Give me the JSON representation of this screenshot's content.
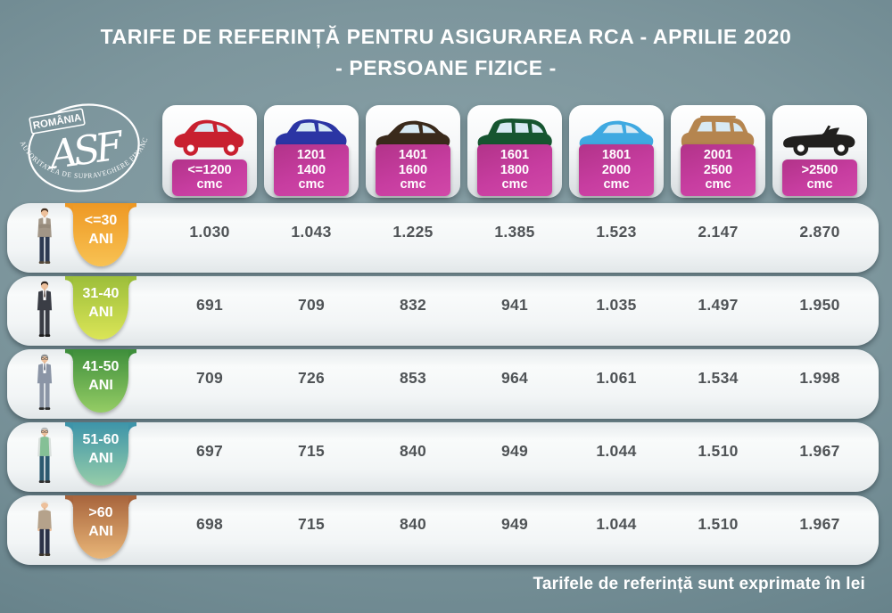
{
  "title": {
    "line1": "TARIFE DE REFERINȚĂ PENTRU ASIGURAREA RCA - APRILIE 2020",
    "line2": "- PERSOANE FIZICE -"
  },
  "logo": {
    "country": "ROMÂNIA",
    "monogram": "ASF",
    "org_name": "AUTORITATEA DE SUPRAVEGHERE FINANCIARĂ"
  },
  "columns": [
    {
      "icon": "red-city-car-icon",
      "body_style": "city",
      "color": "#c8202f",
      "capacity_lines": [
        "<=1200",
        "cmc"
      ]
    },
    {
      "icon": "blue-hatchback-car-icon",
      "body_style": "hatch",
      "color": "#2b35a4",
      "capacity_lines": [
        "1201",
        "1400",
        "cmc"
      ]
    },
    {
      "icon": "brown-sedan-car-icon",
      "body_style": "sedan",
      "color": "#3a2a1b",
      "capacity_lines": [
        "1401",
        "1600",
        "cmc"
      ]
    },
    {
      "icon": "green-wagon-car-icon",
      "body_style": "wagon",
      "color": "#165530",
      "capacity_lines": [
        "1601",
        "1800",
        "cmc"
      ]
    },
    {
      "icon": "lightblue-sedan-car-icon",
      "body_style": "sedan",
      "color": "#3fa9e1",
      "capacity_lines": [
        "1801",
        "2000",
        "cmc"
      ]
    },
    {
      "icon": "tan-suv-car-icon",
      "body_style": "suv",
      "color": "#b5854f",
      "capacity_lines": [
        "2001",
        "2500",
        "cmc"
      ]
    },
    {
      "icon": "black-convertible-car-icon",
      "body_style": "convertible",
      "color": "#21201e",
      "capacity_lines": [
        ">2500",
        "cmc"
      ]
    }
  ],
  "rows": [
    {
      "icon": "young-man-icon",
      "person_style": "young",
      "badge_top": "#ee9823",
      "badge_bottom": "#f8c253",
      "age_lines": [
        "<=30",
        "ANI"
      ],
      "values": [
        "1.030",
        "1.043",
        "1.225",
        "1.385",
        "1.523",
        "2.147",
        "2.870"
      ]
    },
    {
      "icon": "dark-suit-man-icon",
      "person_style": "darksuit",
      "badge_top": "#9cbe3a",
      "badge_bottom": "#dbe557",
      "age_lines": [
        "31-40",
        "ANI"
      ],
      "values": [
        "691",
        "709",
        "832",
        "941",
        "1.035",
        "1.497",
        "1.950"
      ]
    },
    {
      "icon": "gray-suit-man-icon",
      "person_style": "graysuit",
      "badge_top": "#3e8e3b",
      "badge_bottom": "#95cd65",
      "age_lines": [
        "41-50",
        "ANI"
      ],
      "values": [
        "709",
        "726",
        "853",
        "964",
        "1.061",
        "1.534",
        "1.998"
      ]
    },
    {
      "icon": "vest-man-icon",
      "person_style": "vest",
      "badge_top": "#3d94a9",
      "badge_bottom": "#96cda9",
      "age_lines": [
        "51-60",
        "ANI"
      ],
      "values": [
        "697",
        "715",
        "840",
        "949",
        "1.044",
        "1.510",
        "1.967"
      ]
    },
    {
      "icon": "elderly-man-icon",
      "person_style": "elderly",
      "badge_top": "#a7643c",
      "badge_bottom": "#e9b678",
      "age_lines": [
        ">60",
        "ANI"
      ],
      "values": [
        "698",
        "715",
        "840",
        "949",
        "1.044",
        "1.510",
        "1.967"
      ]
    }
  ],
  "footer": {
    "note": "Tarifele de referință sunt exprimate în lei"
  },
  "colors": {
    "background_center": "#8ba3a9",
    "background_edge": "#587379",
    "capacity_badge_magenta": "#c73da0",
    "value_text": "#4f5356",
    "title_text": "#ffffff"
  },
  "chart_data": {
    "type": "table",
    "title": "TARIFE DE REFERINȚĂ PENTRU ASIGURAREA RCA - APRILIE 2020 - PERSOANE FIZICE -",
    "unit_note": "Tarifele de referință sunt exprimate în lei",
    "columns": [
      "<=1200 cmc",
      "1201-1400 cmc",
      "1401-1600 cmc",
      "1601-1800 cmc",
      "1801-2000 cmc",
      "2001-2500 cmc",
      ">2500 cmc"
    ],
    "rows": [
      "<=30 ANI",
      "31-40 ANI",
      "41-50 ANI",
      "51-60 ANI",
      ">60 ANI"
    ],
    "values": [
      [
        1030,
        1043,
        1225,
        1385,
        1523,
        2147,
        2870
      ],
      [
        691,
        709,
        832,
        941,
        1035,
        1497,
        1950
      ],
      [
        709,
        726,
        853,
        964,
        1061,
        1534,
        1998
      ],
      [
        697,
        715,
        840,
        949,
        1044,
        1510,
        1967
      ],
      [
        698,
        715,
        840,
        949,
        1044,
        1510,
        1967
      ]
    ]
  }
}
